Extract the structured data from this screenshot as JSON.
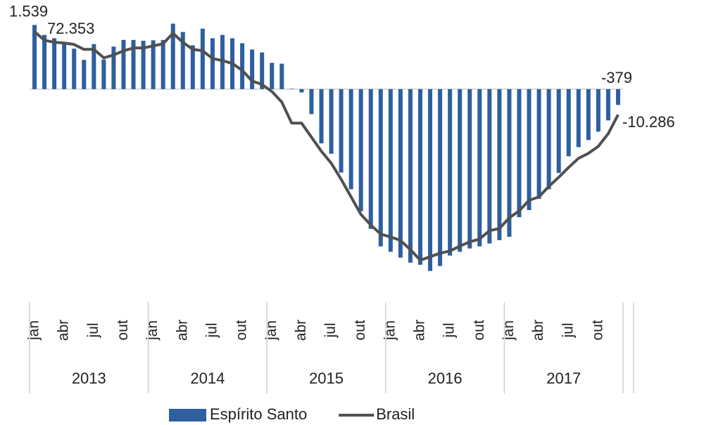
{
  "chart_data": {
    "type": "bar-line",
    "categories": [
      "jan",
      null,
      null,
      "abr",
      null,
      null,
      "jul",
      null,
      null,
      "out",
      null,
      null,
      "jan",
      null,
      null,
      "abr",
      null,
      null,
      "jul",
      null,
      null,
      "out",
      null,
      null,
      "jan",
      null,
      null,
      "abr",
      null,
      null,
      "jul",
      null,
      null,
      "out",
      null,
      null,
      "jan",
      null,
      null,
      "abr",
      null,
      null,
      "jul",
      null,
      null,
      "out",
      null,
      null,
      "jan",
      null,
      null,
      "abr",
      null,
      null,
      "jul",
      null,
      null,
      "out",
      null,
      null
    ],
    "years": [
      "2013",
      "2014",
      "2015",
      "2016",
      "2017"
    ],
    "series": [
      {
        "name": "Espírito Santo",
        "type": "bar",
        "color": "#2e5f9e",
        "axis": "y",
        "values": [
          1539,
          1300,
          1220,
          1100,
          970,
          700,
          1080,
          710,
          1020,
          1180,
          1180,
          1160,
          1170,
          1180,
          1570,
          1370,
          1050,
          1450,
          1220,
          1300,
          1220,
          1100,
          950,
          880,
          630,
          610,
          10,
          -80,
          -600,
          -1300,
          -1550,
          -2000,
          -2400,
          -2930,
          -3350,
          -3770,
          -3900,
          -4040,
          -4160,
          -4210,
          -4360,
          -4240,
          -3990,
          -3900,
          -3820,
          -3770,
          -3700,
          -3620,
          -3540,
          -3070,
          -2900,
          -2630,
          -2400,
          -2010,
          -1610,
          -1390,
          -1220,
          -1020,
          -750,
          -379
        ],
        "value_labels": [
          "1.539",
          null,
          null,
          null,
          null,
          null,
          null,
          null,
          null,
          null,
          null,
          null,
          null,
          null,
          null,
          null,
          null,
          null,
          null,
          null,
          null,
          null,
          null,
          null,
          null,
          null,
          null,
          null,
          null,
          null,
          null,
          null,
          null,
          null,
          null,
          null,
          null,
          null,
          null,
          null,
          null,
          null,
          null,
          null,
          null,
          null,
          null,
          null,
          null,
          null,
          null,
          null,
          null,
          null,
          null,
          null,
          null,
          null,
          null,
          "-379"
        ]
      },
      {
        "name": "Brasil",
        "type": "line",
        "color": "#505050",
        "axis": "y2",
        "values": [
          72353,
          64000,
          61800,
          61100,
          59700,
          54800,
          54800,
          46400,
          49200,
          53400,
          56200,
          56200,
          58300,
          60400,
          70900,
          61800,
          54800,
          53400,
          45700,
          43600,
          40800,
          33800,
          23300,
          19800,
          12800,
          2300,
          -18700,
          -18700,
          -32700,
          -46700,
          -58600,
          -74700,
          -92200,
          -109700,
          -120200,
          -129300,
          -132100,
          -135600,
          -144700,
          -155300,
          -151800,
          -148300,
          -146100,
          -141200,
          -137000,
          -134200,
          -125800,
          -123700,
          -113100,
          -106100,
          -95600,
          -92200,
          -81700,
          -72600,
          -62800,
          -53700,
          -48800,
          -41800,
          -29200,
          -10286
        ],
        "value_labels": [
          "72.353",
          null,
          null,
          null,
          null,
          null,
          null,
          null,
          null,
          null,
          null,
          null,
          null,
          null,
          null,
          null,
          null,
          null,
          null,
          null,
          null,
          null,
          null,
          null,
          null,
          null,
          null,
          null,
          null,
          null,
          null,
          null,
          null,
          null,
          null,
          null,
          null,
          null,
          null,
          null,
          null,
          null,
          null,
          null,
          null,
          null,
          null,
          null,
          null,
          null,
          null,
          null,
          null,
          null,
          null,
          null,
          null,
          null,
          null,
          "-10.286"
        ]
      }
    ],
    "ylim": [
      -4600,
      1800
    ],
    "y2lim": [
      -176000,
      90000
    ],
    "legend": "bottom"
  }
}
